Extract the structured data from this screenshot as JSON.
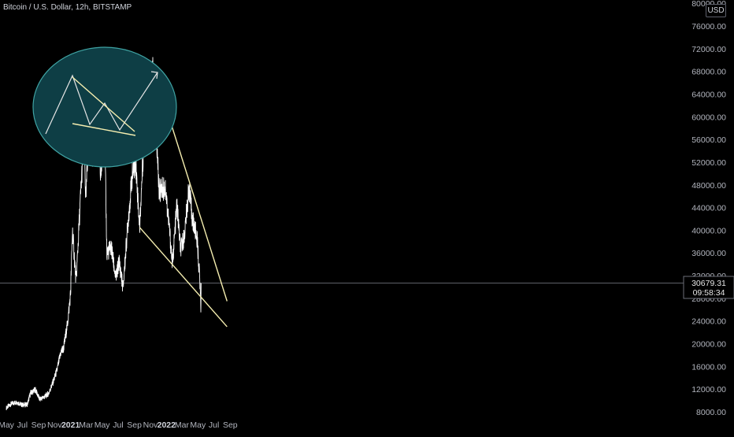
{
  "header": {
    "title": "Bitcoin / U.S. Dollar, 12h, BITSTAMP",
    "currency": "USD"
  },
  "price_label": {
    "value": "30679.31",
    "countdown": "09:58:34"
  },
  "colors": {
    "background": "#000000",
    "candles": "#ffffff",
    "trendline": "#f5eeb0",
    "axis_text": "#b2b5be",
    "circle_fill": "#0e3e45",
    "circle_stroke": "#3fa3a3",
    "price_line": "#6b6e78"
  },
  "chart_data": {
    "type": "line",
    "title": "Bitcoin / U.S. Dollar, 12h, BITSTAMP",
    "xlabel": "",
    "ylabel": "",
    "x_axis_ticks": [
      "May",
      "Jul",
      "Sep",
      "Nov",
      "2021",
      "Mar",
      "May",
      "Jul",
      "Sep",
      "Nov",
      "2022",
      "Mar",
      "May",
      "Jul",
      "Sep"
    ],
    "y_axis_ticks": [
      8000,
      12000,
      16000,
      20000,
      24000,
      28000,
      32000,
      36000,
      40000,
      44000,
      48000,
      52000,
      56000,
      60000,
      64000,
      68000,
      72000,
      76000,
      80000
    ],
    "ylim": [
      7000,
      81000
    ],
    "grid": false,
    "x_start": "2020-05-01",
    "series": [
      {
        "name": "",
        "points": [
          [
            "2020-05-01",
            8700
          ],
          [
            "2020-05-20",
            9400
          ],
          [
            "2020-06-10",
            9700
          ],
          [
            "2020-07-01",
            9200
          ],
          [
            "2020-07-20",
            9300
          ],
          [
            "2020-08-01",
            11300
          ],
          [
            "2020-08-20",
            11900
          ],
          [
            "2020-09-05",
            10200
          ],
          [
            "2020-09-25",
            10700
          ],
          [
            "2020-10-10",
            11300
          ],
          [
            "2020-10-25",
            13100
          ],
          [
            "2020-11-10",
            15300
          ],
          [
            "2020-11-25",
            18500
          ],
          [
            "2020-12-05",
            19200
          ],
          [
            "2020-12-20",
            23500
          ],
          [
            "2021-01-01",
            29000
          ],
          [
            "2021-01-08",
            40000
          ],
          [
            "2021-01-22",
            31000
          ],
          [
            "2021-02-08",
            46000
          ],
          [
            "2021-02-21",
            57000
          ],
          [
            "2021-02-28",
            45000
          ],
          [
            "2021-03-13",
            61000
          ],
          [
            "2021-03-25",
            52500
          ],
          [
            "2021-04-14",
            64000
          ],
          [
            "2021-04-25",
            49000
          ],
          [
            "2021-05-10",
            58000
          ],
          [
            "2021-05-19",
            36000
          ],
          [
            "2021-06-05",
            37000
          ],
          [
            "2021-06-22",
            31500
          ],
          [
            "2021-07-05",
            34500
          ],
          [
            "2021-07-20",
            29800
          ],
          [
            "2021-08-05",
            40000
          ],
          [
            "2021-08-23",
            49500
          ],
          [
            "2021-09-06",
            52000
          ],
          [
            "2021-09-21",
            40500
          ],
          [
            "2021-10-06",
            55000
          ],
          [
            "2021-10-20",
            65000
          ],
          [
            "2021-10-28",
            60000
          ],
          [
            "2021-11-10",
            68500
          ],
          [
            "2021-11-27",
            54000
          ],
          [
            "2021-12-04",
            47000
          ],
          [
            "2021-12-28",
            47500
          ],
          [
            "2022-01-10",
            41500
          ],
          [
            "2022-01-24",
            34000
          ],
          [
            "2022-02-10",
            44500
          ],
          [
            "2022-02-24",
            36500
          ],
          [
            "2022-03-10",
            39000
          ],
          [
            "2022-03-28",
            47500
          ],
          [
            "2022-04-10",
            42000
          ],
          [
            "2022-04-28",
            38500
          ],
          [
            "2022-05-09",
            30500
          ],
          [
            "2022-05-12",
            26500
          ],
          [
            "2022-05-14",
            30679
          ]
        ]
      }
    ],
    "annotations": {
      "trendlines": [
        {
          "name": "upper-resistance",
          "from": [
            "2021-11-10",
            69000
          ],
          "to": [
            "2022-08-20",
            27500
          ]
        },
        {
          "name": "lower-support",
          "from": [
            "2021-09-21",
            40500
          ],
          "to": [
            "2022-08-20",
            23000
          ]
        }
      ],
      "inset": "falling-wedge-breakout-sketch"
    }
  }
}
